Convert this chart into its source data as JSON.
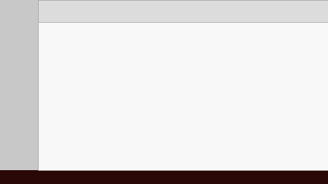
{
  "bg_color": "#7a7a7a",
  "whiteboard_color": "#f8f8f8",
  "toolbar_color": "#dcdcdc",
  "green_color": "#1a8a1a",
  "black_color": "#111111",
  "sidebar_color": "#c8c8c8",
  "taskbar_color": "#2a0808",
  "figsize": [
    4.74,
    2.66
  ],
  "dpi": 100
}
